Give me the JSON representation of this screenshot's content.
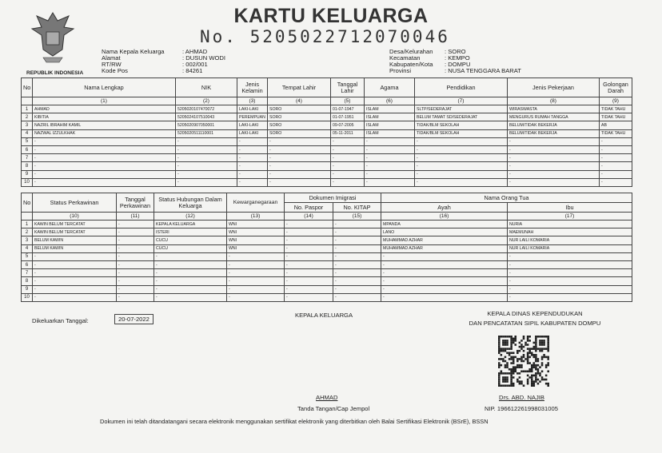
{
  "header": {
    "title": "KARTU KELUARGA",
    "number": "No. 5205022712070046",
    "emblem_caption": "REPUBLIK INDONESIA"
  },
  "info_left": [
    {
      "label": "Nama Kepala Keluarga",
      "value": ": AHMAD"
    },
    {
      "label": "Alamat",
      "value": ": DUSUN WODI"
    },
    {
      "label": "RT/RW",
      "value": ": 002/001"
    },
    {
      "label": "Kode Pos",
      "value": ": 84261"
    }
  ],
  "info_right": [
    {
      "label": "Desa/Kelurahan",
      "value": ": SORO"
    },
    {
      "label": "Kecamatan",
      "value": ": KEMPO"
    },
    {
      "label": "Kabupaten/Kota",
      "value": ": DOMPU"
    },
    {
      "label": "Provinsi",
      "value": ": NUSA TENGGARA BARAT"
    }
  ],
  "table1": {
    "headers": [
      "No",
      "Nama Lengkap",
      "NIK",
      "Jenis Kelamin",
      "Tempat Lahir",
      "Tanggal Lahir",
      "Agama",
      "Pendidikan",
      "Jenis Pekerjaan",
      "Golongan Darah"
    ],
    "index": [
      "(1)",
      "(2)",
      "(3)",
      "(4)",
      "(5)",
      "(6)",
      "(7)",
      "(8)",
      "(9)"
    ],
    "rows": [
      [
        "1",
        "AHMAD",
        "5205020107470072",
        "LAKI-LAKI",
        "SORO",
        "01-07-1947",
        "ISLAM",
        "SLTP/SEDERAJAT",
        "WIRASWASTA",
        "TIDAK TAHU"
      ],
      [
        "2",
        "KIBITIA",
        "5205024107510043",
        "PEREMPUAN",
        "SORO",
        "01-07-1951",
        "ISLAM",
        "BELUM TAMAT SD/SEDERAJAT",
        "MENGURUS RUMAH TANGGA",
        "TIDAK TAHU"
      ],
      [
        "3",
        "NAZRIL IBRAHIM KAMIL",
        "5205020907050001",
        "LAKI-LAKI",
        "SORO",
        "09-07-2005",
        "ISLAM",
        "TIDAK/BLM SEKOLAH",
        "BELUM/TIDAK BEKERJA",
        "AB"
      ],
      [
        "4",
        "NAZWAL IZZULKHAK",
        "5205020511110001",
        "LAKI-LAKI",
        "SORO",
        "05-11-2011",
        "ISLAM",
        "TIDAK/BLM SEKOLAH",
        "BELUM/TIDAK BEKERJA",
        "TIDAK TAHU"
      ],
      [
        "5",
        "-",
        "-",
        "-",
        "-",
        "-",
        "-",
        "-",
        "-",
        "-"
      ],
      [
        "6",
        "-",
        "-",
        "-",
        "-",
        "-",
        "-",
        "-",
        "-",
        "-"
      ],
      [
        "7",
        "-",
        "-",
        "-",
        "-",
        "-",
        "-",
        "-",
        "-",
        "-"
      ],
      [
        "8",
        "-",
        "-",
        "-",
        "-",
        "-",
        "-",
        "-",
        "-",
        "-"
      ],
      [
        "9",
        "-",
        "-",
        "-",
        "-",
        "-",
        "-",
        "-",
        "-",
        "-"
      ],
      [
        "10",
        "-",
        "-",
        "-",
        "-",
        "-",
        "-",
        "-",
        "-",
        "-"
      ]
    ]
  },
  "table2": {
    "headers": {
      "no": "No",
      "status": "Status Perkawinan",
      "tanggal": "Tanggal Perkawinan",
      "hubungan": "Status Hubungan Dalam Keluarga",
      "kewarganegaraan": "Kewarganegaraan",
      "dokumen": "Dokumen Imigrasi",
      "paspor": "No. Paspor",
      "kitap": "No. KITAP",
      "orang_tua": "Nama Orang Tua",
      "ayah": "Ayah",
      "ibu": "Ibu"
    },
    "index": [
      "(10)",
      "(11)",
      "(12)",
      "(13)",
      "(14)",
      "(15)",
      "(16)",
      "(17)"
    ],
    "rows": [
      [
        "1",
        "KAWIN BELUM TERCATAT",
        "-",
        "KEPALA KELUARGA",
        "WNI",
        "-",
        "-",
        "MPANDA",
        "NURIA"
      ],
      [
        "2",
        "KAWIN BELUM TERCATAT",
        "-",
        "ISTERI",
        "WNI",
        "-",
        "-",
        "LANO",
        "MAEMUNAH"
      ],
      [
        "3",
        "BELUM KAWIN",
        "-",
        "CUCU",
        "WNI",
        "-",
        "-",
        "MUHAMMAD AZHAR",
        "NUR LAILI KOMARIA"
      ],
      [
        "4",
        "BELUM KAWIN",
        "-",
        "CUCU",
        "WNI",
        "-",
        "-",
        "MUHAMMAD AZHAR",
        "NUR LAILI KOMARIA"
      ],
      [
        "5",
        "-",
        "-",
        "-",
        "-",
        "-",
        "-",
        "-",
        "-"
      ],
      [
        "6",
        "-",
        "-",
        "-",
        "-",
        "-",
        "-",
        "-",
        "-"
      ],
      [
        "7",
        "-",
        "-",
        "-",
        "-",
        "-",
        "-",
        "-",
        "-"
      ],
      [
        "8",
        "-",
        "-",
        "-",
        "-",
        "-",
        "-",
        "-",
        "-"
      ],
      [
        "9",
        "-",
        "-",
        "-",
        "-",
        "-",
        "-",
        "-",
        "-"
      ],
      [
        "10",
        "-",
        "-",
        "-",
        "-",
        "-",
        "-",
        "-",
        "-"
      ]
    ]
  },
  "footer": {
    "issued_label": "Dikeluarkan Tanggal:",
    "issued_date": "20-07-2022",
    "head_title": "KEPALA KELUARGA",
    "head_name": "AHMAD",
    "head_sign": "Tanda Tangan/Cap Jempol",
    "office_line1": "KEPALA DINAS KEPENDUDUKAN",
    "office_line2": "DAN PENCATATAN SIPIL KABUPATEN DOMPU",
    "official_name": "Drs. ABD. NAJIB",
    "official_nip": "NIP. 196612261998031005",
    "disclaimer": "Dokumen ini telah ditandatangani secara elektronik menggunakan sertifikat elektronik yang diterbitkan oleh Balai Sertifikasi Elektronik (BSrE), BSSN"
  }
}
